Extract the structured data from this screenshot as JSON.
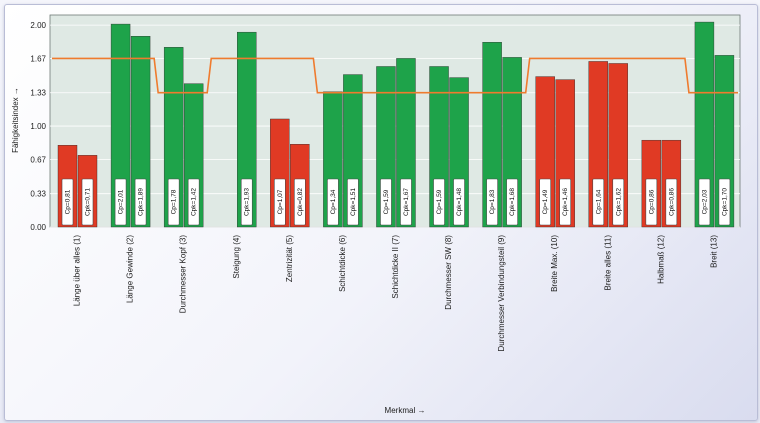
{
  "chart_data": {
    "type": "bar",
    "ylabel": "Fähigkeitsindex →",
    "xlabel": "Merkmal →",
    "ylim": [
      0,
      2.1
    ],
    "yticks": [
      "0.00",
      "0.33",
      "0.67",
      "1.00",
      "1.33",
      "1.67",
      "2.00"
    ],
    "categories": [
      "Länge über alles (1)",
      "Länge Gewinde (2)",
      "Durchmesser Kopf (3)",
      "Steigung (4)",
      "Zentrizität (5)",
      "Schichtdicke (6)",
      "Schichtdicke II (7)",
      "Durchmesser SW (8)",
      "Durchmesser Verbindungsteil (9)",
      "Breite Max. (10)",
      "Breite alles (11)",
      "Halbmaß (12)",
      "Breit (13)"
    ],
    "series": [
      {
        "name": "Cp",
        "values": [
          0.81,
          2.01,
          1.78,
          null,
          1.07,
          1.34,
          1.59,
          1.59,
          1.83,
          1.49,
          1.64,
          0.86,
          2.03
        ]
      },
      {
        "name": "Cpk",
        "values": [
          0.71,
          1.89,
          1.42,
          1.93,
          0.82,
          1.51,
          1.67,
          1.48,
          1.68,
          1.46,
          1.62,
          0.86,
          1.7
        ]
      }
    ],
    "bar_labels": {
      "Cp": [
        "Cp=0,81",
        "Cp=2,01",
        "Cp=1,78",
        "",
        "Cp=1,07",
        "Cp=1,34",
        "Cp=1,59",
        "Cp=1,59",
        "Cp=1,83",
        "Cp=1,49",
        "Cp=1,64",
        "Cp=0,86",
        "Cp=2,03"
      ],
      "Cpk": [
        "Cpk=0,71",
        "Cpk=1,89",
        "Cpk=1,42",
        "Cpk=1,93",
        "Cpk=0,82",
        "Cpk=1,51",
        "Cpk=1,67",
        "Cpk=1,48",
        "Cpk=1,68",
        "Cpk=1,46",
        "Cpk=1,62",
        "Cpk=0,86",
        "Cpk=1,70"
      ]
    },
    "limit_line": {
      "values": [
        1.67,
        1.67,
        1.33,
        1.67,
        1.67,
        1.33,
        1.33,
        1.33,
        1.33,
        1.67,
        1.67,
        1.67,
        1.33
      ]
    },
    "colors": {
      "pass": "#1ea34a",
      "fail": "#e03a24",
      "limit": "#ef7b2e",
      "plot_bg": "#dfe9e4",
      "grid": "#ffffff"
    },
    "grid": true
  }
}
